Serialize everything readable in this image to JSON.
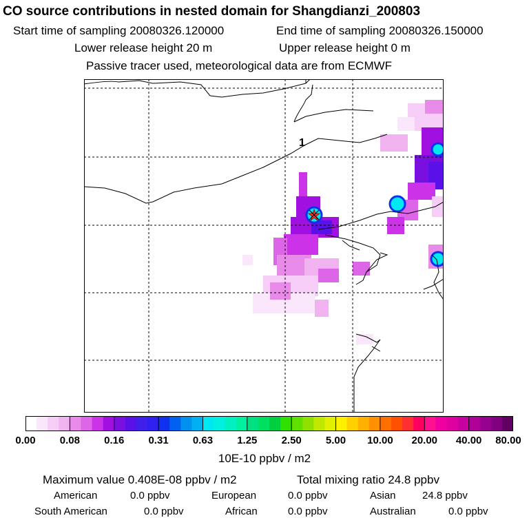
{
  "header": {
    "title": "CO  source contributions in nested domain for Shangdianzi_200803",
    "start_label": "Start time of sampling 20080326.120000",
    "end_label": "End time of sampling 20080326.150000",
    "lower_label": "Lower release height   20 m",
    "upper_label": "Upper release height    0 m",
    "note": "Passive tracer used, meteorological data are from ECMWF"
  },
  "map": {
    "contour_label": "1",
    "station_marker": "star-marker"
  },
  "legend": {
    "ticks": [
      "0.00",
      "0.08",
      "0.16",
      "0.31",
      "0.63",
      "1.25",
      "2.50",
      "5.00",
      "10.00",
      "20.00",
      "40.00",
      "80.00"
    ],
    "unit": "10E-10 ppbv / m2",
    "colors": [
      "#ffffff",
      "#fbe7fb",
      "#f6cdf6",
      "#f0b3f0",
      "#e88ae8",
      "#dd66e8",
      "#cc33e8",
      "#a010e0",
      "#7a10e0",
      "#5a10e8",
      "#4020e8",
      "#3020f0",
      "#1030f0",
      "#0060f0",
      "#0090f0",
      "#00b0f0",
      "#00e8f0",
      "#00f0e0",
      "#00f0c0",
      "#00f0a0",
      "#00e080",
      "#00e060",
      "#00d040",
      "#30e000",
      "#60e000",
      "#90e000",
      "#c0e800",
      "#e0f000",
      "#fff000",
      "#ffd000",
      "#ffb000",
      "#ff9000",
      "#ff7000",
      "#ff5000",
      "#ff3030",
      "#ff0060",
      "#ff1090",
      "#f000a0",
      "#e000a0",
      "#c800a0",
      "#b00098",
      "#980090",
      "#800080",
      "#600060"
    ]
  },
  "stats": {
    "max_value": "Maximum value  0.408E-08 ppbv / m2",
    "total": "Total mixing ratio      24.8 ppbv"
  },
  "sources": {
    "american": "American",
    "american_val": "0.0 ppbv",
    "european": "European",
    "european_val": "0.0 ppbv",
    "asian": "Asian",
    "asian_val": "24.8 ppbv",
    "south_american": "South American",
    "south_american_val": "0.0 ppbv",
    "african": "African",
    "african_val": "0.0 ppbv",
    "australian": "Australian",
    "australian_val": "0.0 ppbv"
  }
}
